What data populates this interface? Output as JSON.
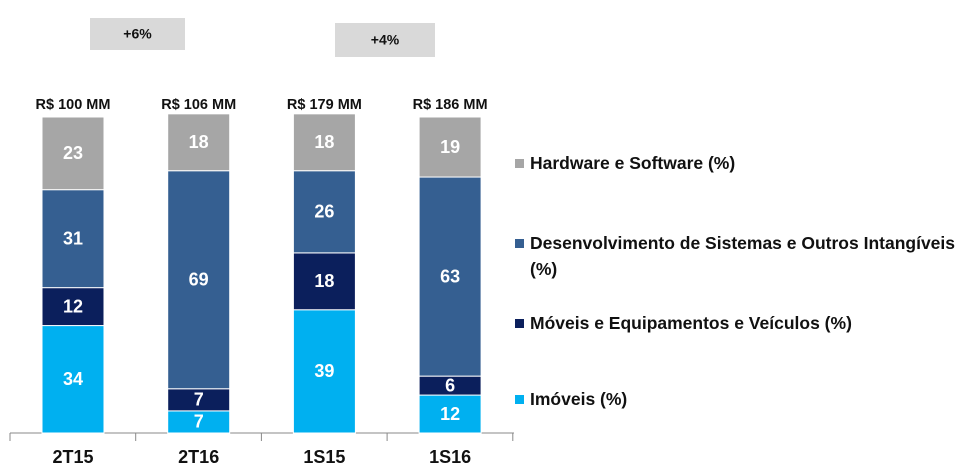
{
  "chart_data": {
    "type": "stacked_bar",
    "categories": [
      "2T15",
      "2T16",
      "1S15",
      "1S16"
    ],
    "series": [
      {
        "name": "Imóveis (%)",
        "color": "#00b0f0",
        "values": [
          34,
          7,
          39,
          12
        ]
      },
      {
        "name": "Móveis e Equipamentos e Veículos  (%)",
        "color": "#0b1f5c",
        "values": [
          12,
          7,
          18,
          6
        ]
      },
      {
        "name": "Desenvolvimento de Sistemas e Outros Intangíveis (%)",
        "color": "#355f91",
        "values": [
          31,
          69,
          26,
          63
        ]
      },
      {
        "name": "Hardware e Software (%)",
        "color": "#a6a6a6",
        "values": [
          23,
          18,
          18,
          19
        ]
      }
    ],
    "totals": [
      "R$ 100 MM",
      "R$ 106 MM",
      "R$ 179 MM",
      "R$ 186 MM"
    ],
    "annotations": [
      "+6%",
      "+4%"
    ],
    "ylim": [
      0,
      100
    ],
    "legend": "right"
  }
}
